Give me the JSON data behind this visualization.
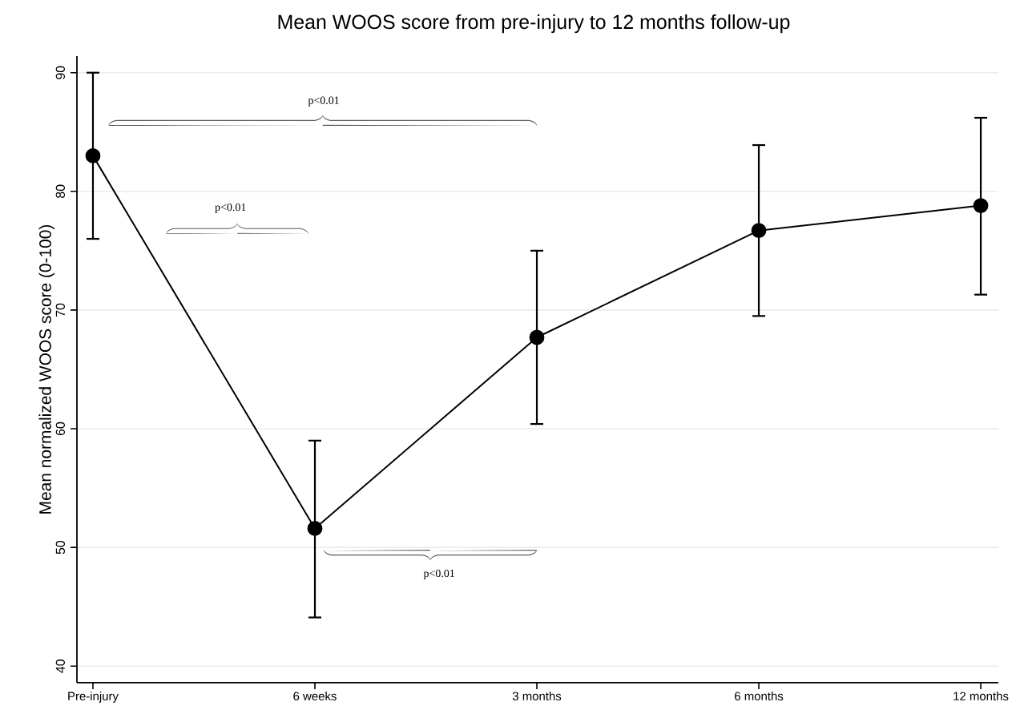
{
  "chart_data": {
    "type": "line",
    "title": "Mean WOOS score from pre-injury to 12 months follow-up",
    "ylabel": "Mean normalized WOOS score (0-100)",
    "categories": [
      "Pre-injury",
      "6 weeks",
      "3 months",
      "6 months",
      "12 months"
    ],
    "series": [
      {
        "color": "#000000",
        "values": [
          83.0,
          51.6,
          67.7,
          76.7,
          78.8
        ],
        "errors": [
          [
            76.0,
            90.0
          ],
          [
            44.1,
            59.0
          ],
          [
            60.4,
            75.0
          ],
          [
            69.5,
            83.9
          ],
          [
            71.3,
            86.2
          ]
        ]
      }
    ],
    "ylim": [
      38.6,
      91.4
    ],
    "yticks": [
      40,
      50,
      60,
      70,
      80,
      90
    ],
    "grid": "y",
    "marker": "circle",
    "line_style": "solid",
    "annotations": [
      "p<0.01",
      "p<0.01",
      "p<0.01"
    ]
  }
}
